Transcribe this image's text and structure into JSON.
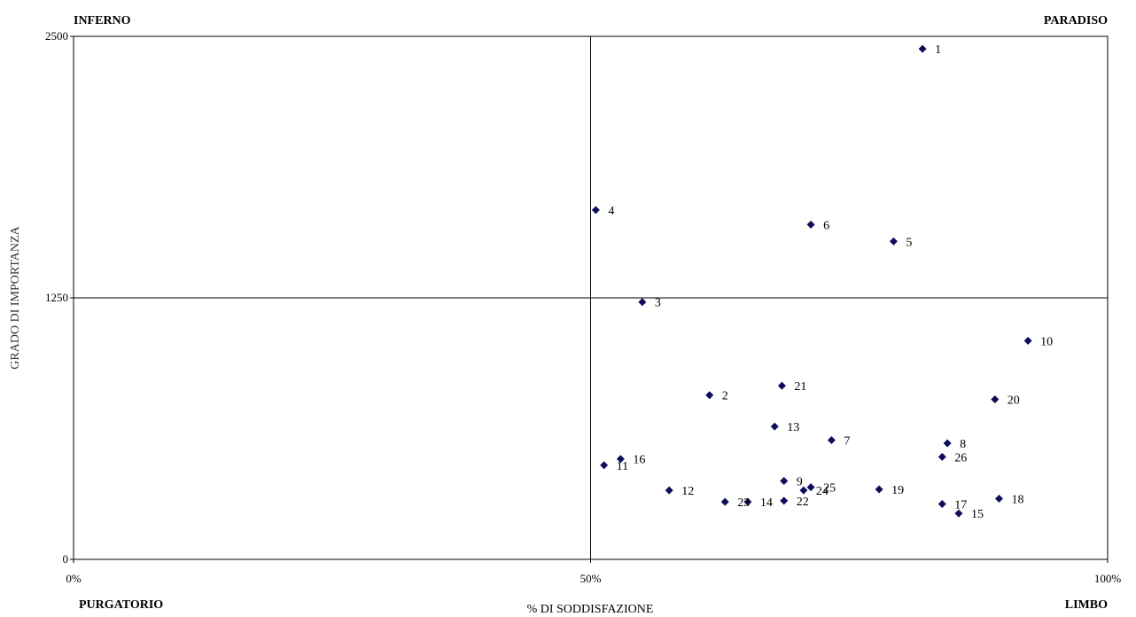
{
  "chart_data": {
    "type": "scatter",
    "title": "",
    "xlabel": "% DI SODDISFAZIONE",
    "ylabel": "GRADO DI IMPORTANZA",
    "xlim": [
      0,
      100
    ],
    "ylim": [
      0,
      2500
    ],
    "x_ticks": [
      "0%",
      "50%",
      "100%"
    ],
    "y_ticks": [
      "0",
      "1250",
      "2500"
    ],
    "x_tick_values": [
      0,
      50,
      100
    ],
    "y_tick_values": [
      0,
      1250,
      2500
    ],
    "quadrant_lines": {
      "x": 50,
      "y": 1250
    },
    "quadrant_labels": {
      "top_left": "INFERNO",
      "top_right": "PARADISO",
      "bottom_left": "PURGATORIO",
      "bottom_right": "LIMBO"
    },
    "marker_color": "#0d0d5c",
    "grid": false,
    "legend": "none",
    "points": [
      {
        "label": "1",
        "x": 82.1,
        "y": 2440
      },
      {
        "label": "2",
        "x": 61.5,
        "y": 785
      },
      {
        "label": "3",
        "x": 55.0,
        "y": 1230
      },
      {
        "label": "4",
        "x": 50.5,
        "y": 1670
      },
      {
        "label": "5",
        "x": 79.3,
        "y": 1520
      },
      {
        "label": "6",
        "x": 71.3,
        "y": 1600
      },
      {
        "label": "7",
        "x": 73.3,
        "y": 570
      },
      {
        "label": "8",
        "x": 84.5,
        "y": 555
      },
      {
        "label": "9",
        "x": 68.7,
        "y": 375
      },
      {
        "label": "10",
        "x": 92.3,
        "y": 1045
      },
      {
        "label": "11",
        "x": 51.3,
        "y": 450
      },
      {
        "label": "12",
        "x": 57.6,
        "y": 330
      },
      {
        "label": "13",
        "x": 67.8,
        "y": 635
      },
      {
        "label": "14",
        "x": 65.2,
        "y": 275
      },
      {
        "label": "15",
        "x": 85.6,
        "y": 220
      },
      {
        "label": "16",
        "x": 52.9,
        "y": 480
      },
      {
        "label": "17",
        "x": 84.0,
        "y": 265
      },
      {
        "label": "18",
        "x": 89.5,
        "y": 290
      },
      {
        "label": "19",
        "x": 77.9,
        "y": 335
      },
      {
        "label": "20",
        "x": 89.1,
        "y": 765
      },
      {
        "label": "21",
        "x": 68.5,
        "y": 830
      },
      {
        "label": "22",
        "x": 68.7,
        "y": 280
      },
      {
        "label": "23",
        "x": 63.0,
        "y": 275
      },
      {
        "label": "24",
        "x": 70.6,
        "y": 330
      },
      {
        "label": "25",
        "x": 71.3,
        "y": 345
      },
      {
        "label": "26",
        "x": 84.0,
        "y": 490
      }
    ]
  }
}
